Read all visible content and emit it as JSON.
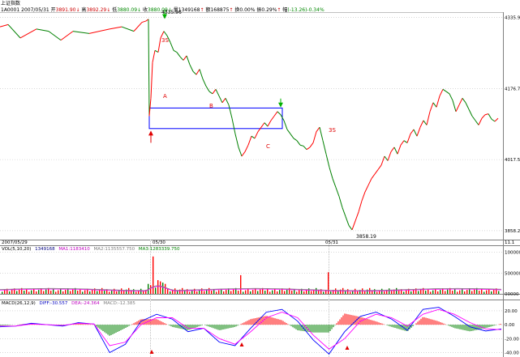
{
  "header": {
    "name": "上证指数",
    "code": "1A0001",
    "date": "2007/05/31",
    "open_label": "开",
    "open": "3891.90",
    "high_label": "高",
    "high": "3892.29",
    "low_label": "低",
    "low": "3880.09",
    "close_label": "收",
    "close": "3880.09",
    "vol_label": "量",
    "vol": "1349168",
    "amount_label": "额",
    "amount": "168875",
    "turnover_label": "换",
    "turnover": "0.00%",
    "amp_label": "振",
    "amp": "0.29%",
    "change_label": "幅",
    "change": "(-13.26)-0.34%"
  },
  "price_panel": {
    "y_ticks": [
      "4335.96",
      "4176.7",
      "4017.5",
      "3858.2"
    ],
    "y_tick_values": [
      4335.96,
      4176.7,
      4017.5,
      3858.2
    ],
    "ylim": [
      3840,
      4346
    ],
    "high_label": "4335.96",
    "low_label": "3858.19",
    "date_labels": [
      "2007/05/29",
      "05/30",
      "05/31"
    ],
    "annotations": [
      "A",
      "B",
      "C",
      "3S",
      "3S"
    ],
    "corner_text": "11.1"
  },
  "volume_panel": {
    "title": "VOL(5,10,20)",
    "value": "1349168",
    "ma1_label": "MA1:",
    "ma1": "1183410",
    "ma2_label": "MA2:",
    "ma2": "1135557.750",
    "ma3_label": "MA3:",
    "ma3": "1283339.750",
    "y_ticks": [
      "1000000",
      "500000",
      "00000"
    ],
    "ylim": [
      0,
      1150000
    ]
  },
  "macd_panel": {
    "title": "MACD(26,12,9)",
    "diff_label": "DIFF:",
    "diff": "-30.557",
    "dea_label": "DEA:",
    "dea": "-24.364",
    "macd_label": "MACD:",
    "macd": "-12.385",
    "y_ticks": [
      "20.00",
      "0.00",
      "-20.00",
      "-40.00"
    ],
    "ylim": [
      -44,
      28
    ]
  },
  "colors": {
    "up": "#ff0000",
    "down": "#008000",
    "ma1": "#808080",
    "ma2": "#ff00ff",
    "ma3": "#008000",
    "diff": "#0000ff",
    "dea": "#ff00ff",
    "box": "#0000ff",
    "grid": "#c0c0c0"
  },
  "chart_data": {
    "type": "line",
    "title": "上证指数",
    "xlabel": "",
    "ylabel": "",
    "x": [
      0,
      10,
      25,
      45,
      60,
      75,
      90,
      110,
      135,
      150,
      165,
      175,
      180,
      183,
      184,
      186,
      188,
      191,
      195,
      198,
      202,
      206,
      210,
      214,
      218,
      222,
      226,
      230,
      234,
      238,
      242,
      246,
      250,
      254,
      258,
      262,
      266,
      270,
      274,
      278,
      282,
      286,
      290,
      294,
      298,
      302,
      306,
      310,
      314,
      318,
      322,
      326,
      330,
      334,
      338,
      342,
      346,
      350,
      354,
      358,
      362,
      366,
      370,
      374,
      378,
      382,
      386,
      390,
      394,
      398,
      402,
      406,
      410,
      414,
      418,
      422,
      426,
      430,
      434,
      438,
      442,
      446,
      450,
      454,
      458,
      462,
      466,
      470,
      474,
      478,
      482,
      486,
      490,
      494,
      498,
      502,
      506,
      510,
      514,
      518,
      522,
      526,
      530,
      534,
      538,
      542,
      546,
      550,
      554,
      558,
      562,
      566,
      570,
      574,
      578,
      582,
      586,
      590,
      594,
      598,
      602,
      606,
      610,
      614
    ],
    "series": [
      {
        "values": [
          4315,
          4320,
          4290,
          4310,
          4305,
          4285,
          4305,
          4300,
          4310,
          4315,
          4305,
          4325,
          4328,
          4332,
          4115,
          4155,
          4235,
          4262,
          4258,
          4290,
          4305,
          4295,
          4280,
          4262,
          4258,
          4248,
          4240,
          4250,
          4230,
          4215,
          4208,
          4220,
          4198,
          4182,
          4170,
          4165,
          4175,
          4160,
          4145,
          4155,
          4140,
          4110,
          4075,
          4045,
          4025,
          4035,
          4050,
          4070,
          4065,
          4080,
          4090,
          4100,
          4092,
          4105,
          4115,
          4125,
          4118,
          4105,
          4085,
          4075,
          4065,
          4060,
          4050,
          4048,
          4040,
          4045,
          4055,
          4080,
          4090,
          4060,
          4030,
          4000,
          3975,
          3955,
          3935,
          3910,
          3890,
          3870,
          3860,
          3880,
          3900,
          3925,
          3945,
          3960,
          3975,
          3985,
          3995,
          4005,
          4025,
          4015,
          4035,
          4045,
          4030,
          4050,
          4060,
          4055,
          4075,
          4085,
          4070,
          4090,
          4105,
          4095,
          4125,
          4145,
          4135,
          4160,
          4175,
          4170,
          4165,
          4150,
          4125,
          4140,
          4155,
          4145,
          4130,
          4115,
          4105,
          4095,
          4110,
          4118,
          4120,
          4108,
          4103,
          4110
        ]
      }
    ],
    "markers": [
      {
        "type": "up-arrow",
        "x": 186,
        "value": 4095
      },
      {
        "type": "down-arrow",
        "x": 203,
        "value": 4336
      },
      {
        "type": "down-arrow",
        "x": 346,
        "value": 4138
      },
      {
        "type": "box",
        "x": [
          184,
          348
        ],
        "value": [
          4087,
          4133
        ]
      }
    ],
    "volume": {
      "ma_series": [
        {
          "name": "MA1",
          "values": [
            120000,
            150000,
            130000,
            140000,
            210000,
            200000,
            180000,
            190000,
            170000,
            160000
          ]
        },
        {
          "name": "MA2",
          "values": [
            110000,
            140000,
            140000,
            150000,
            190000,
            210000,
            190000,
            180000,
            175000,
            165000
          ]
        }
      ]
    },
    "macd": {
      "diff": [
        -3,
        -2,
        2,
        0,
        -2,
        3,
        1,
        -40,
        -28,
        5,
        15,
        8,
        -10,
        -5,
        -25,
        -30,
        -5,
        18,
        22,
        5,
        -22,
        -42,
        -10,
        12,
        18,
        8,
        -8,
        22,
        25,
        12,
        -3,
        -9,
        -6
      ],
      "dea": [
        -2,
        -2,
        1,
        0,
        -1,
        2,
        1,
        -30,
        -25,
        0,
        10,
        10,
        -5,
        -5,
        -20,
        -28,
        -10,
        10,
        18,
        10,
        -15,
        -35,
        -20,
        5,
        15,
        10,
        -2,
        15,
        22,
        15,
        3,
        -6,
        -7
      ]
    }
  }
}
